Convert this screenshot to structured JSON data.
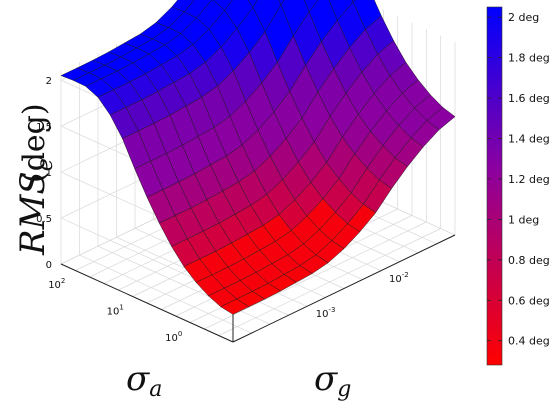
{
  "chart_data": {
    "type": "surface",
    "x_axis": {
      "symbol": "σ",
      "subscript": "g",
      "scale": "log",
      "tick_labels": [
        {
          "mantissa": "10",
          "exp": "-3",
          "value": 0.001
        },
        {
          "mantissa": "10",
          "exp": "-2",
          "value": 0.01
        }
      ]
    },
    "y_axis": {
      "symbol": "σ",
      "subscript": "a",
      "scale": "log",
      "tick_labels": [
        {
          "mantissa": "10",
          "exp": "0",
          "value": 1
        },
        {
          "mantissa": "10",
          "exp": "1",
          "value": 10
        },
        {
          "mantissa": "10",
          "exp": "2",
          "value": 100
        }
      ]
    },
    "z_axis": {
      "symbol": "RMS",
      "subscript": "e",
      "unit": "(deg)",
      "ticks": [
        "0",
        "0.5",
        "1",
        "1.5",
        "2"
      ],
      "range": [
        0,
        2.1
      ]
    },
    "colorbar": {
      "ticks": [
        "0.4 deg",
        "0.6 deg",
        "0.8 deg",
        "1 deg",
        "1.2 deg",
        "1.4 deg",
        "1.6 deg",
        "1.8 deg",
        "2 deg"
      ],
      "range": [
        0.28,
        2.05
      ],
      "colors": [
        "#ff0000",
        "#8b00a0",
        "#0000ff"
      ]
    },
    "surface_profile": {
      "along_sigma_a_high_to_low": [
        2.05,
        2.06,
        2.05,
        1.9,
        1.65,
        1.3,
        1.0,
        0.75,
        0.55,
        0.42,
        0.33,
        0.3
      ],
      "along_sigma_g_low_to_high": [
        1.0,
        1.0,
        1.0,
        1.02,
        1.04,
        1.1,
        1.25,
        1.45,
        1.75,
        2.0,
        2.2,
        2.3
      ]
    },
    "grid": true
  }
}
